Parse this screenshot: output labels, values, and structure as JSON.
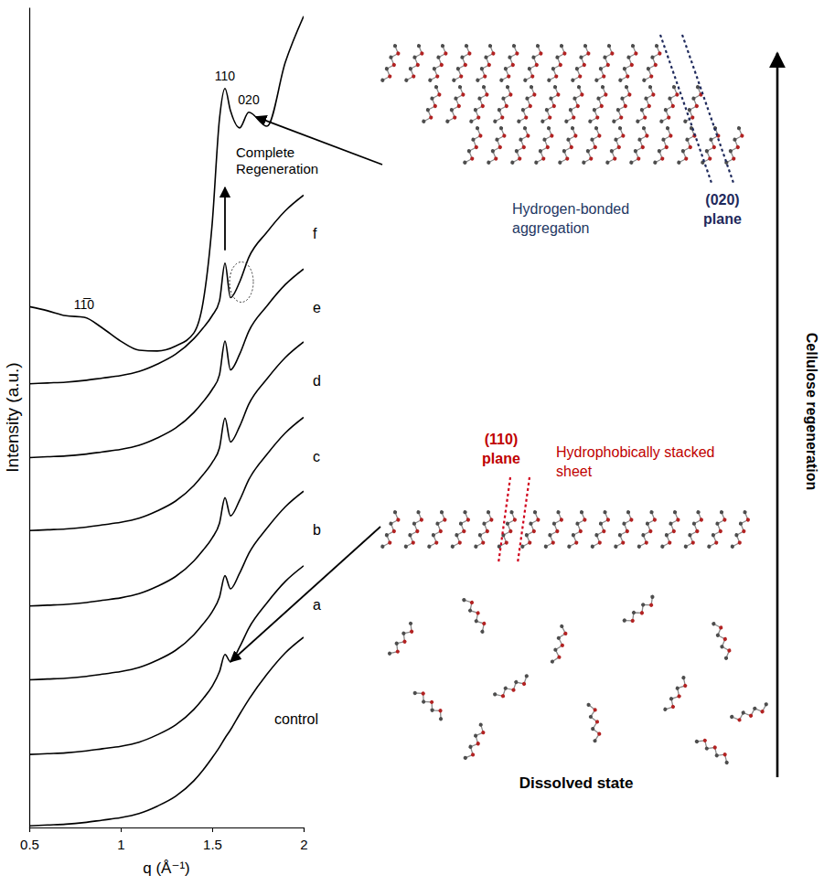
{
  "chart_data": {
    "type": "line",
    "x_label": "q (Å⁻¹)",
    "y_label": "Intensity (a.u.)",
    "x": [
      0.5,
      0.6,
      0.7,
      0.8,
      0.9,
      1,
      1.1,
      1.2,
      1.3,
      1.4,
      1.45,
      1.5,
      1.54,
      1.57,
      1.6,
      1.65,
      1.7,
      1.8,
      1.9,
      2
    ],
    "xlim": [
      0.5,
      2
    ],
    "xticks": [
      0.5,
      1,
      1.5,
      2
    ],
    "ylim": [
      0,
      100
    ],
    "tick_labels": "x",
    "color": "#000000",
    "series": [
      {
        "name": "control",
        "values": [
          0.2,
          0.3,
          0.4,
          0.6,
          0.9,
          1.2,
          1.7,
          2.6,
          3.8,
          5.7,
          7.0,
          8.5,
          9.8,
          10.9,
          11.9,
          13.8,
          15.6,
          18.7,
          21.3,
          23.2
        ]
      },
      {
        "name": "a",
        "values": [
          8.9,
          9.0,
          9.1,
          9.3,
          9.6,
          9.9,
          10.4,
          11.3,
          12.5,
          14.4,
          15.7,
          17.2,
          19.0,
          21.1,
          20.2,
          22.0,
          24.3,
          27.4,
          30.0,
          31.9
        ]
      },
      {
        "name": "b",
        "values": [
          18.0,
          18.1,
          18.2,
          18.4,
          18.7,
          19.0,
          19.5,
          20.4,
          21.6,
          23.5,
          24.8,
          26.3,
          28.1,
          30.7,
          29.1,
          31.0,
          33.4,
          36.5,
          39.1,
          41.0
        ]
      },
      {
        "name": "c",
        "values": [
          27.0,
          27.1,
          27.2,
          27.4,
          27.7,
          28.0,
          28.5,
          29.4,
          30.6,
          32.5,
          33.8,
          35.3,
          37.1,
          40.2,
          38.0,
          39.9,
          42.4,
          45.5,
          48.1,
          50.0
        ]
      },
      {
        "name": "d",
        "values": [
          36.2,
          36.3,
          36.4,
          36.6,
          36.9,
          37.2,
          37.7,
          38.6,
          39.8,
          41.7,
          43.0,
          44.5,
          46.3,
          49.9,
          47.0,
          48.9,
          51.6,
          54.7,
          57.3,
          59.2
        ]
      },
      {
        "name": "e",
        "values": [
          45.1,
          45.2,
          45.3,
          45.5,
          45.8,
          46.1,
          46.6,
          47.5,
          48.7,
          50.6,
          51.9,
          53.4,
          55.2,
          59.3,
          55.8,
          57.7,
          60.5,
          63.6,
          66.2,
          68.1
        ]
      },
      {
        "name": "f",
        "values": [
          54.1,
          54.2,
          54.3,
          54.5,
          54.8,
          55.1,
          55.6,
          56.5,
          57.7,
          59.6,
          60.9,
          62.4,
          64.2,
          68.8,
          64.6,
          66.5,
          69.5,
          72.6,
          75.2,
          77.1
        ]
      },
      {
        "name": "Complete Regeneration",
        "values": [
          63.5,
          63.0,
          62.4,
          62.2,
          60.9,
          59.3,
          58.2,
          58.1,
          58.7,
          60.3,
          64.0,
          73.6,
          86.4,
          90.1,
          87.4,
          85.3,
          87.2,
          85.5,
          93.3,
          98.9
        ]
      }
    ],
    "annotations": [
      {
        "text": "110",
        "x": 1.57
      },
      {
        "text": "020",
        "x": 1.7
      },
      {
        "text": "11̅0",
        "x": 0.8
      }
    ]
  },
  "schematic": {
    "direction_label": "Cellulose regeneration",
    "states": [
      {
        "name": "Hydrogen-bonded aggregation",
        "plane": "(020) plane"
      },
      {
        "name": "Hydrophobically stacked sheet",
        "plane": "(110) plane"
      },
      {
        "name": "Dissolved state"
      }
    ]
  }
}
